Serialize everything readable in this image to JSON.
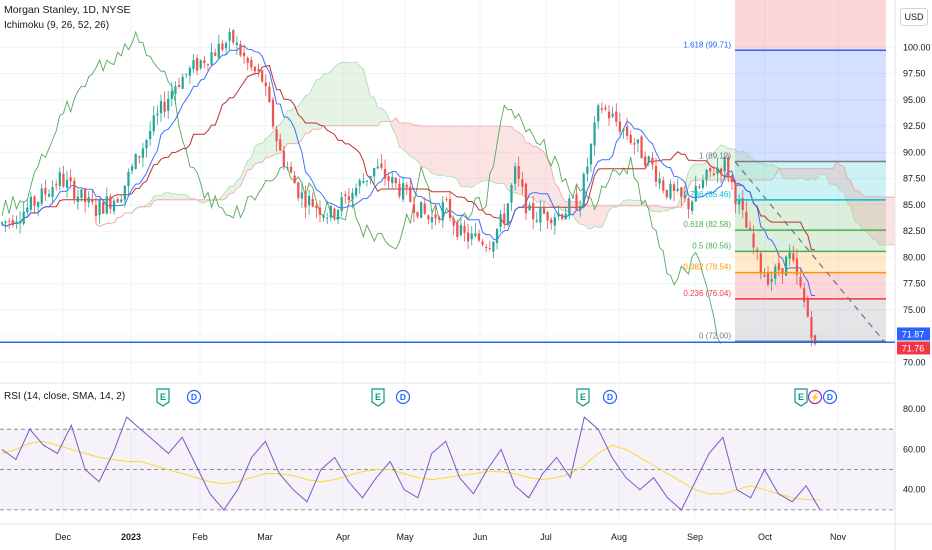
{
  "header": {
    "symbol_line": "Morgan Stanley, 1D, NYSE",
    "indicator_line": "Ichimoku (9, 26, 52, 26)",
    "rsi_line": "RSI (14, close, SMA, 14, 2)",
    "currency": "USD"
  },
  "colors": {
    "up": "#26a69a",
    "down": "#ef5350",
    "conversion": "#2962ff",
    "base": "#b71c1c",
    "lagging": "#43a047",
    "cloud_up": "#a5d6a7",
    "cloud_down": "#ef9a9a",
    "rsi": "#7e57c2",
    "rsi_ma": "#fdd835"
  },
  "chart_data": [
    {
      "type": "candlestick",
      "title": "Morgan Stanley, 1D, NYSE",
      "y_axis": {
        "ylim": [
          68.5,
          104.5
        ],
        "ticks": [
          70.0,
          72.5,
          75.0,
          77.5,
          80.0,
          82.5,
          85.0,
          87.5,
          90.0,
          92.5,
          95.0,
          97.5,
          100.0
        ]
      },
      "x_axis": {
        "tick_labels": [
          "Dec",
          "2023",
          "Feb",
          "Mar",
          "Apr",
          "May",
          "Jun",
          "Jul",
          "Aug",
          "Sep",
          "Oct",
          "Nov"
        ]
      },
      "price_path": [
        [
          "Nov",
          83.2
        ],
        [
          "Nov",
          84.8
        ],
        [
          "Dec",
          87.5
        ],
        [
          "Dec",
          84.5
        ],
        [
          "2023",
          86.0
        ],
        [
          "2023",
          92.0
        ],
        [
          "Jan",
          96.5
        ],
        [
          "Feb",
          99.0
        ],
        [
          "Feb",
          100.8
        ],
        [
          "Feb",
          98.0
        ],
        [
          "Mar",
          97.0
        ],
        [
          "Mar",
          90.0
        ],
        [
          "Mar",
          86.0
        ],
        [
          "Mar",
          84.0
        ],
        [
          "Apr",
          88.5
        ],
        [
          "Apr",
          86.5
        ],
        [
          "Apr",
          83.5
        ],
        [
          "May",
          85.0
        ],
        [
          "May",
          82.0
        ],
        [
          "May",
          81.5
        ],
        [
          "Jun",
          84.0
        ],
        [
          "Jun",
          88.0
        ],
        [
          "Jun",
          84.0
        ],
        [
          "Jul",
          84.2
        ],
        [
          "Jul",
          85.5
        ],
        [
          "Jul",
          94.5
        ],
        [
          "Aug",
          92.0
        ],
        [
          "Aug",
          89.0
        ],
        [
          "Aug",
          86.5
        ],
        [
          "Sep",
          85.0
        ],
        [
          "Sep",
          88.0
        ],
        [
          "Sep",
          89.0
        ],
        [
          "Sep",
          84.0
        ],
        [
          "Oct",
          79.0
        ],
        [
          "Oct",
          78.0
        ],
        [
          "Oct",
          80.0
        ],
        [
          "Oct",
          77.0
        ],
        [
          "Oct",
          72.0
        ]
      ],
      "last_prices": {
        "close": "71.76",
        "previous": "71.87"
      },
      "fibonacci": [
        {
          "level": "1.618 (99.71)",
          "value": 99.71,
          "color": "#2962ff"
        },
        {
          "level": "1 (89.12)",
          "value": 89.12,
          "color": "#787b86"
        },
        {
          "level": "0.786 (85.46)",
          "value": 85.46,
          "color": "#00bcd4"
        },
        {
          "level": "0.618 (82.58)",
          "value": 82.58,
          "color": "#4caf50"
        },
        {
          "level": "0.5 (80.56)",
          "value": 80.56,
          "color": "#4caf50"
        },
        {
          "level": "0.382 (78.54)",
          "value": 78.54,
          "color": "#ff9800"
        },
        {
          "level": "0.236 (76.04)",
          "value": 76.04,
          "color": "#f23645"
        },
        {
          "level": "0 (72.00)",
          "value": 72.0,
          "color": "#787b86"
        }
      ],
      "events": [
        {
          "label": "E",
          "month": "Jan"
        },
        {
          "label": "D",
          "month": "Jan"
        },
        {
          "label": "E",
          "month": "Apr"
        },
        {
          "label": "D",
          "month": "Apr"
        },
        {
          "label": "E",
          "month": "Jul"
        },
        {
          "label": "D",
          "month": "Jul"
        },
        {
          "label": "E",
          "month": "Oct"
        },
        {
          "label": "⚡",
          "month": "Oct"
        },
        {
          "label": "D",
          "month": "Oct"
        }
      ]
    },
    {
      "type": "line",
      "title": "RSI (14, close, SMA, 14, 2)",
      "y_axis": {
        "ylim": [
          24,
          82
        ],
        "ticks": [
          40.0,
          60.0,
          80.0
        ]
      },
      "bands": [
        70,
        50,
        30
      ],
      "series": [
        {
          "values": [
            60,
            55,
            70,
            62,
            58,
            72,
            50,
            44,
            58,
            76,
            70,
            64,
            58,
            66,
            52,
            38,
            30,
            40,
            56,
            64,
            48,
            40,
            34,
            50,
            56,
            44,
            36,
            46,
            54,
            40,
            36,
            58,
            64,
            46,
            38,
            50,
            60,
            42,
            36,
            48,
            56,
            46,
            76,
            70,
            56,
            46,
            40,
            46,
            36,
            30,
            44,
            58,
            66,
            40,
            36,
            50,
            38,
            34,
            42,
            30
          ]
        },
        {
          "values": [
            58,
            60,
            63,
            64,
            62,
            60,
            58,
            56,
            55,
            54,
            54,
            52,
            50,
            48,
            46,
            44,
            43,
            44,
            46,
            48,
            48,
            47,
            45,
            44,
            45,
            47,
            49,
            50,
            50,
            48,
            46,
            45,
            46,
            47,
            48,
            49,
            49,
            48,
            46,
            45,
            46,
            48,
            52,
            58,
            62,
            60,
            56,
            52,
            48,
            44,
            40,
            38,
            38,
            40,
            42,
            40,
            38,
            36,
            35,
            35
          ]
        }
      ]
    }
  ]
}
